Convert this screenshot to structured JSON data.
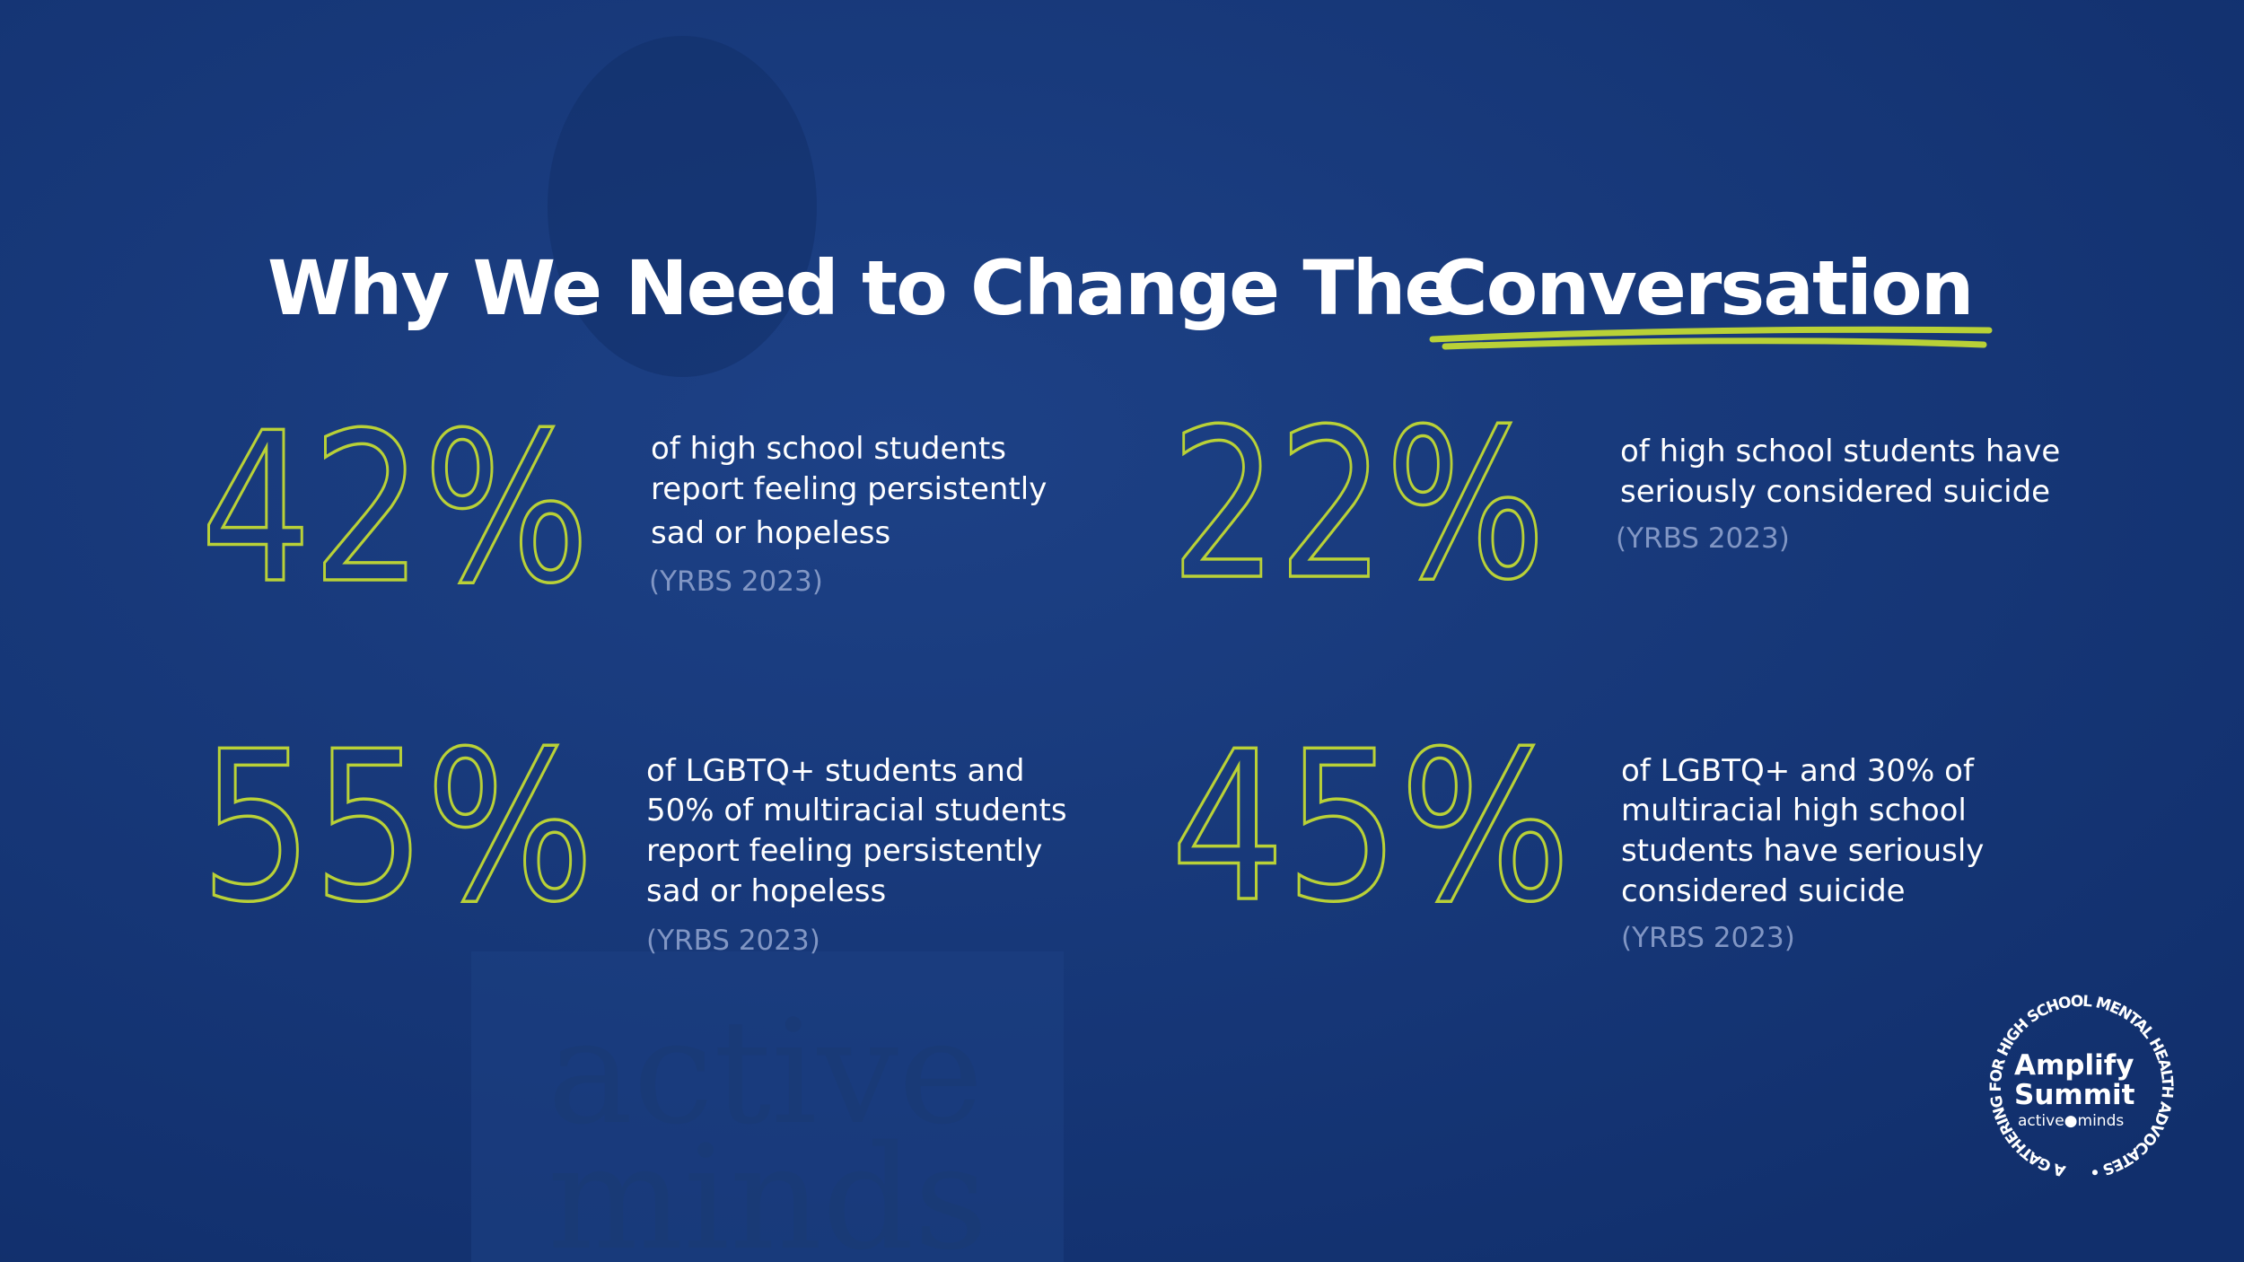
{
  "title": {
    "lead": "Why We Need to Change The",
    "emphasis": "Conversation"
  },
  "stats": [
    {
      "value": "42%",
      "lines": [
        "of high school students",
        "report feeling persistently",
        "sad or hopeless"
      ],
      "source": "(YRBS 2023)"
    },
    {
      "value": "22%",
      "lines": [
        "of high school students have",
        "seriously considered suicide"
      ],
      "source": "(YRBS 2023)"
    },
    {
      "value": "55%",
      "lines": [
        "of LGBTQ+ students and",
        "50% of multiracial students",
        "report feeling persistently",
        "sad or hopeless"
      ],
      "source": "(YRBS 2023)"
    },
    {
      "value": "45%",
      "lines": [
        "of LGBTQ+ and 30% of",
        "multiracial high school",
        "students have seriously",
        "considered suicide"
      ],
      "source": "(YRBS 2023)"
    }
  ],
  "background": {
    "sign_top": "active",
    "sign_bottom": "minds"
  },
  "logo": {
    "ring": "A GATHERING FOR HIGH SCHOOL MENTAL HEALTH ADVOCATES •",
    "name_top": "Amplify",
    "name_bottom": "Summit",
    "org": "active●minds"
  }
}
